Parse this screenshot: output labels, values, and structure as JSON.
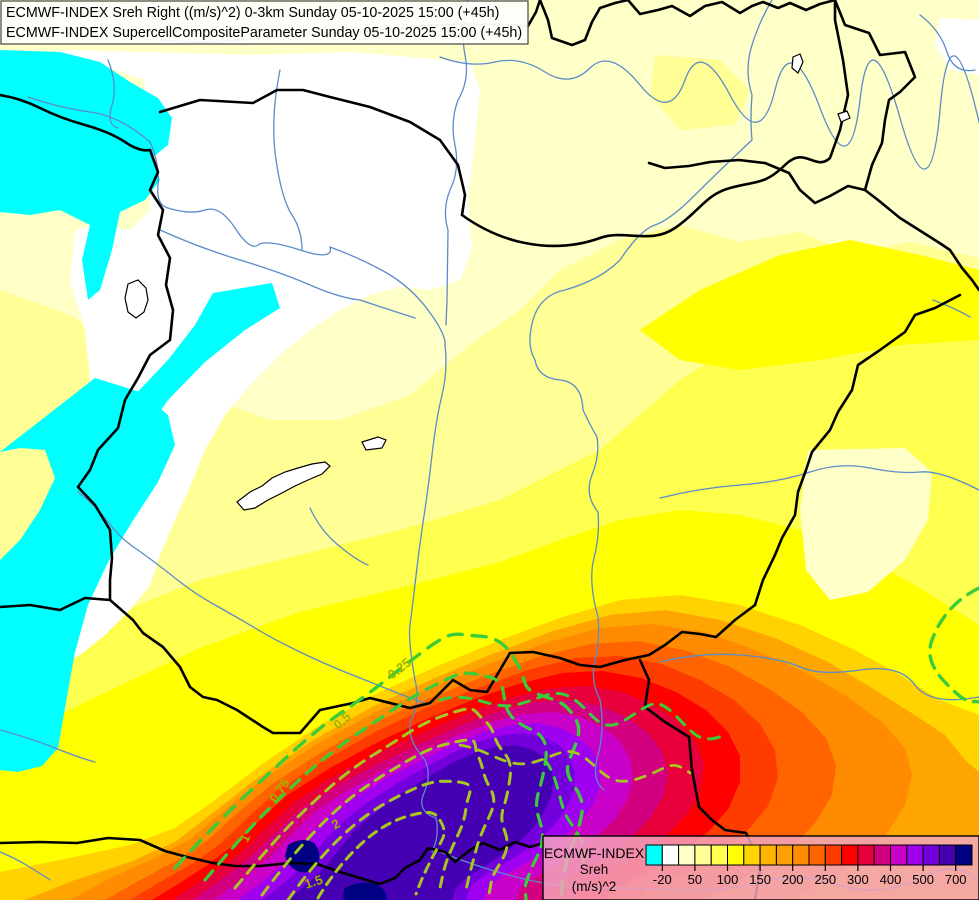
{
  "header": {
    "line1": "ECMWF-INDEX Sreh Right ((m/s)^2) 0-3km Sunday 05-10-2025 15:00 (+45h)",
    "line2": "ECMWF-INDEX SupercellCompositeParameter Sunday 05-10-2025 15:00 (+45h)"
  },
  "legend": {
    "title": "ECMWF-INDEX",
    "parameter": "Sreh",
    "units": "(m/s)^2",
    "tick_labels": [
      "-20",
      "50",
      "100",
      "150",
      "200",
      "250",
      "300",
      "400",
      "500",
      "700"
    ],
    "colors": [
      "#00FFFF",
      "#FFFFFF",
      "#FFFFC8",
      "#FFFF96",
      "#FFFF50",
      "#FFFF00",
      "#FFD200",
      "#FFB400",
      "#FFA000",
      "#FF8C00",
      "#FF6400",
      "#FF3C00",
      "#FF0000",
      "#E8003C",
      "#D20080",
      "#C800C8",
      "#A000F0",
      "#7300DC",
      "#4600B4",
      "#000082"
    ]
  },
  "scp_labels": [
    {
      "text": "0.25"
    },
    {
      "text": "0.5"
    },
    {
      "text": "0.75"
    },
    {
      "text": "1"
    },
    {
      "text": "1.5"
    },
    {
      "text": "2"
    }
  ],
  "accent_colors": {
    "country_border": "#000000",
    "river": "#5B8CC8",
    "scp_contour_outer": "#3ACC3A",
    "scp_contour_inner": "#A6C81E",
    "scp_label": "#9FB400",
    "legend_box": "#F3A7C1",
    "title_box": "#FFFFFF"
  }
}
